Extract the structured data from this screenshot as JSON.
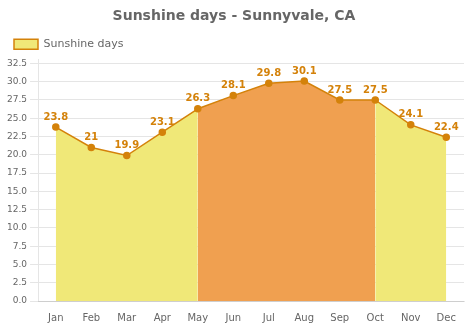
{
  "chart_data": {
    "type": "line",
    "title": "Sunshine days - Sunnyvale, CA",
    "categories": [
      "Jan",
      "Feb",
      "Mar",
      "Apr",
      "May",
      "Jun",
      "Jul",
      "Aug",
      "Sep",
      "Oct",
      "Nov",
      "Dec"
    ],
    "series": [
      {
        "name": "Sunshine days",
        "color": "#d4820a",
        "marker": "o",
        "values": [
          23.8,
          21.0,
          19.9,
          23.1,
          26.3,
          28.1,
          29.8,
          30.1,
          27.5,
          27.5,
          24.1,
          22.4
        ]
      }
    ],
    "colors": [
      "#f0e878",
      "#f0e878",
      "#f0e878",
      "#f0e878",
      "#f0a050",
      "#f0a050",
      "#f0a050",
      "#f0a050",
      "#f0a050",
      "#f0a050",
      "#f0e878",
      "#f0e878"
    ],
    "ylim": [
      0,
      33
    ],
    "yticks": [
      {
        "value": 0,
        "label": "0.0"
      },
      2.5,
      {
        "value": 5,
        "label": "5.0"
      },
      7.5,
      {
        "value": 10,
        "label": "10.0"
      },
      12.5,
      {
        "value": 15,
        "label": "15.0"
      },
      17.5,
      {
        "value": 20,
        "label": "20.0"
      },
      22.5,
      {
        "value": 25,
        "label": "25.0"
      },
      27.5,
      {
        "value": 30,
        "label": "30.0"
      },
      32.5
    ],
    "grid": true,
    "legend": "upper left",
    "data_labels": true
  }
}
